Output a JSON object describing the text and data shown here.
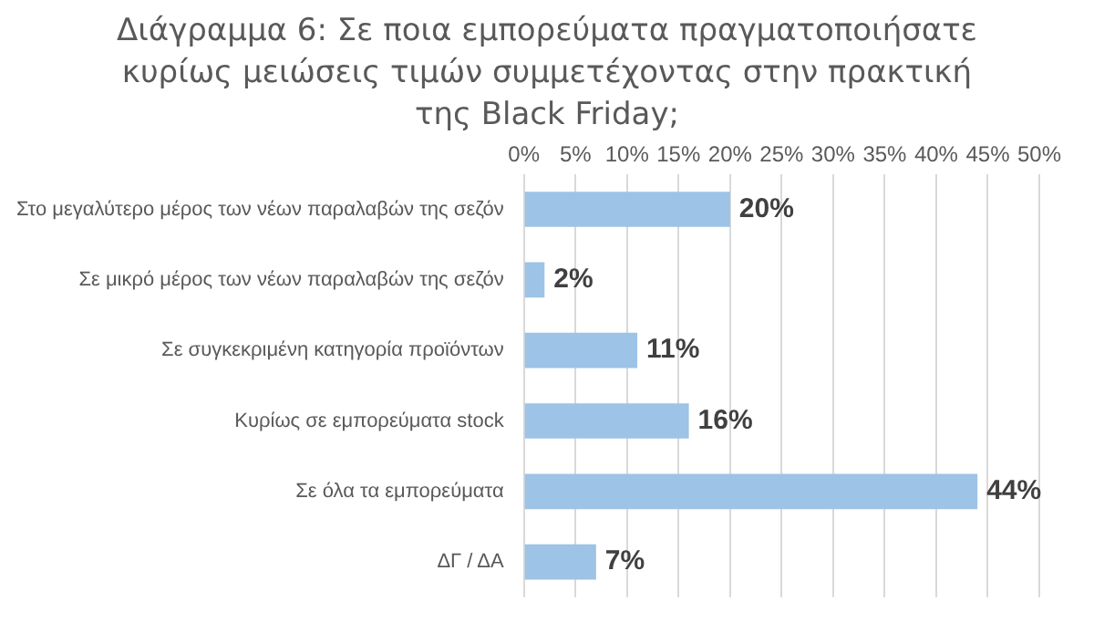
{
  "chart_data": {
    "type": "bar",
    "orientation": "horizontal",
    "title": "Διάγραμμα 6: Σε ποια εμπορεύματα πραγματοποιήσατε κυρίως μειώσεις τιμών συμμετέχοντας στην πρακτική της Black Friday;",
    "categories": [
      "Στο μεγαλύτερο μέρος των νέων παραλαβών της σεζόν",
      "Σε μικρό μέρος των νέων παραλαβών της σεζόν",
      "Σε συγκεκριμένη κατηγορία προϊόντων",
      "Κυρίως σε εμπορεύματα stock",
      "Σε όλα τα εμπορεύματα",
      "ΔΓ / ΔΑ"
    ],
    "values": [
      20,
      2,
      11,
      16,
      44,
      7
    ],
    "value_labels": [
      "20%",
      "2%",
      "11%",
      "16%",
      "44%",
      "7%"
    ],
    "color": "#9dc3e6",
    "xlim": [
      0,
      50
    ],
    "xticks": [
      {
        "value": 0,
        "label": "0%"
      },
      {
        "value": 5,
        "label": "5%"
      },
      {
        "value": 10,
        "label": "10%"
      },
      {
        "value": 15,
        "label": "15%"
      },
      {
        "value": 20,
        "label": "20%"
      },
      {
        "value": 25,
        "label": "25%"
      },
      {
        "value": 30,
        "label": "30%"
      },
      {
        "value": 35,
        "label": "35%"
      },
      {
        "value": 40,
        "label": "40%"
      },
      {
        "value": 45,
        "label": "45%"
      },
      {
        "value": 50,
        "label": "50%"
      }
    ],
    "grid": "x",
    "legend": false
  }
}
